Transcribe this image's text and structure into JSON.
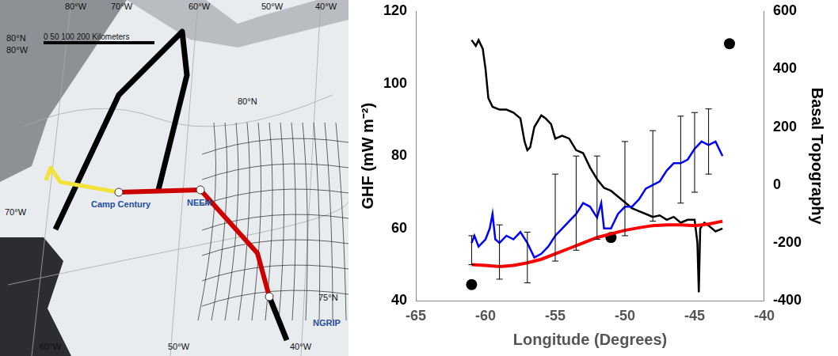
{
  "map": {
    "graticule_labels": [
      "80°W",
      "70°W",
      "60°W",
      "50°W",
      "40°W",
      "80°N",
      "80°W",
      "70°W",
      "80°N",
      "75°N",
      "60°W",
      "50°W",
      "40°W"
    ],
    "scale_bar": "0 50 100 200 Kilometers",
    "stations": [
      "Camp Century",
      "NEEM",
      "NGRIP"
    ]
  },
  "chart_data": {
    "type": "line",
    "x_label": "Longitude (Degrees)",
    "y_label": "GHF (mW m⁻²)",
    "y2_label": "Basal Topography",
    "xlim": [
      -65,
      -40
    ],
    "xticks": [
      -65,
      -60,
      -55,
      -50,
      -45,
      -40
    ],
    "ylim": [
      40,
      120
    ],
    "yticks": [
      40,
      60,
      80,
      100,
      120
    ],
    "y2lim": [
      -400,
      600
    ],
    "y2ticks": [
      -400,
      -200,
      0,
      200,
      400,
      600
    ],
    "grid": false,
    "series": [
      {
        "type": "line",
        "color": "#0000ff",
        "line_style": "solid",
        "x": [
          -61,
          -60.8,
          -60.5,
          -60,
          -59.7,
          -59.5,
          -59.3,
          -59,
          -58.5,
          -58,
          -57.5,
          -57,
          -56.5,
          -56,
          -55.5,
          -55,
          -54.5,
          -54,
          -53.5,
          -53,
          -52.5,
          -52,
          -51.7,
          -51.5,
          -51,
          -50.5,
          -50,
          -49.5,
          -49,
          -48.5,
          -48,
          -47.5,
          -47,
          -46.5,
          -46,
          -45.5,
          -45,
          -44.5,
          -44,
          -43.5,
          -43
        ],
        "values": [
          56,
          58,
          55,
          57,
          60,
          64,
          57,
          56,
          58,
          57,
          59,
          56,
          52,
          53,
          55,
          58,
          60,
          62,
          64,
          67,
          66,
          63,
          67,
          60,
          60,
          64,
          66,
          66,
          68,
          71,
          72,
          73,
          76,
          78,
          78,
          79,
          82,
          84,
          83,
          84,
          80
        ],
        "error_bars": {
          "x": [
            -61,
            -59,
            -57,
            -55,
            -53.5,
            -52,
            -50,
            -48,
            -46,
            -45,
            -44
          ],
          "lower": [
            50,
            46,
            45,
            51,
            54,
            57,
            58,
            62,
            67,
            70,
            75
          ],
          "upper": [
            58,
            61,
            59,
            75,
            80,
            80,
            84,
            87,
            91,
            92,
            93
          ]
        }
      },
      {
        "type": "line",
        "color": "#ff0000",
        "line_style": "solid",
        "x": [
          -61,
          -60,
          -59,
          -58,
          -57,
          -56,
          -55,
          -54,
          -53,
          -52,
          -51,
          -50,
          -49,
          -48,
          -47,
          -46,
          -45,
          -44,
          -43
        ],
        "values": [
          50,
          49.8,
          49.5,
          49.8,
          50.5,
          51.5,
          53,
          54.5,
          56,
          57.5,
          58.5,
          59.5,
          60.2,
          60.8,
          61,
          61,
          60.8,
          61.2,
          62
        ]
      },
      {
        "type": "line",
        "color": "#000000",
        "line_style": "solid",
        "axis": "y2",
        "x": [
          -61,
          -60.7,
          -60.5,
          -60.2,
          -60,
          -59.8,
          -59.5,
          -59,
          -58.5,
          -58,
          -57.5,
          -57.2,
          -57,
          -56.8,
          -56.5,
          -56,
          -55.7,
          -55.3,
          -55,
          -54.5,
          -54,
          -53.5,
          -53,
          -52.5,
          -52,
          -51.5,
          -51,
          -50.5,
          -50,
          -49.5,
          -49,
          -48.5,
          -48,
          -47.5,
          -47,
          -46.5,
          -46,
          -45.5,
          -45,
          -44.8,
          -44.7,
          -44.6,
          -44.3,
          -44,
          -43.5,
          -43
        ],
        "values": [
          500,
          480,
          500,
          470,
          400,
          300,
          270,
          260,
          260,
          250,
          230,
          150,
          120,
          130,
          200,
          240,
          230,
          210,
          160,
          170,
          160,
          120,
          110,
          60,
          20,
          -10,
          -20,
          -40,
          -60,
          -80,
          -90,
          -100,
          -110,
          -105,
          -120,
          -110,
          -130,
          -120,
          -120,
          -200,
          -370,
          -150,
          -130,
          -140,
          -160,
          -150
        ]
      },
      {
        "type": "scatter",
        "color": "#000000",
        "marker": "circle",
        "x": [
          -61,
          -51,
          -42.5
        ],
        "values": [
          44.5,
          57.5,
          111
        ]
      }
    ]
  }
}
